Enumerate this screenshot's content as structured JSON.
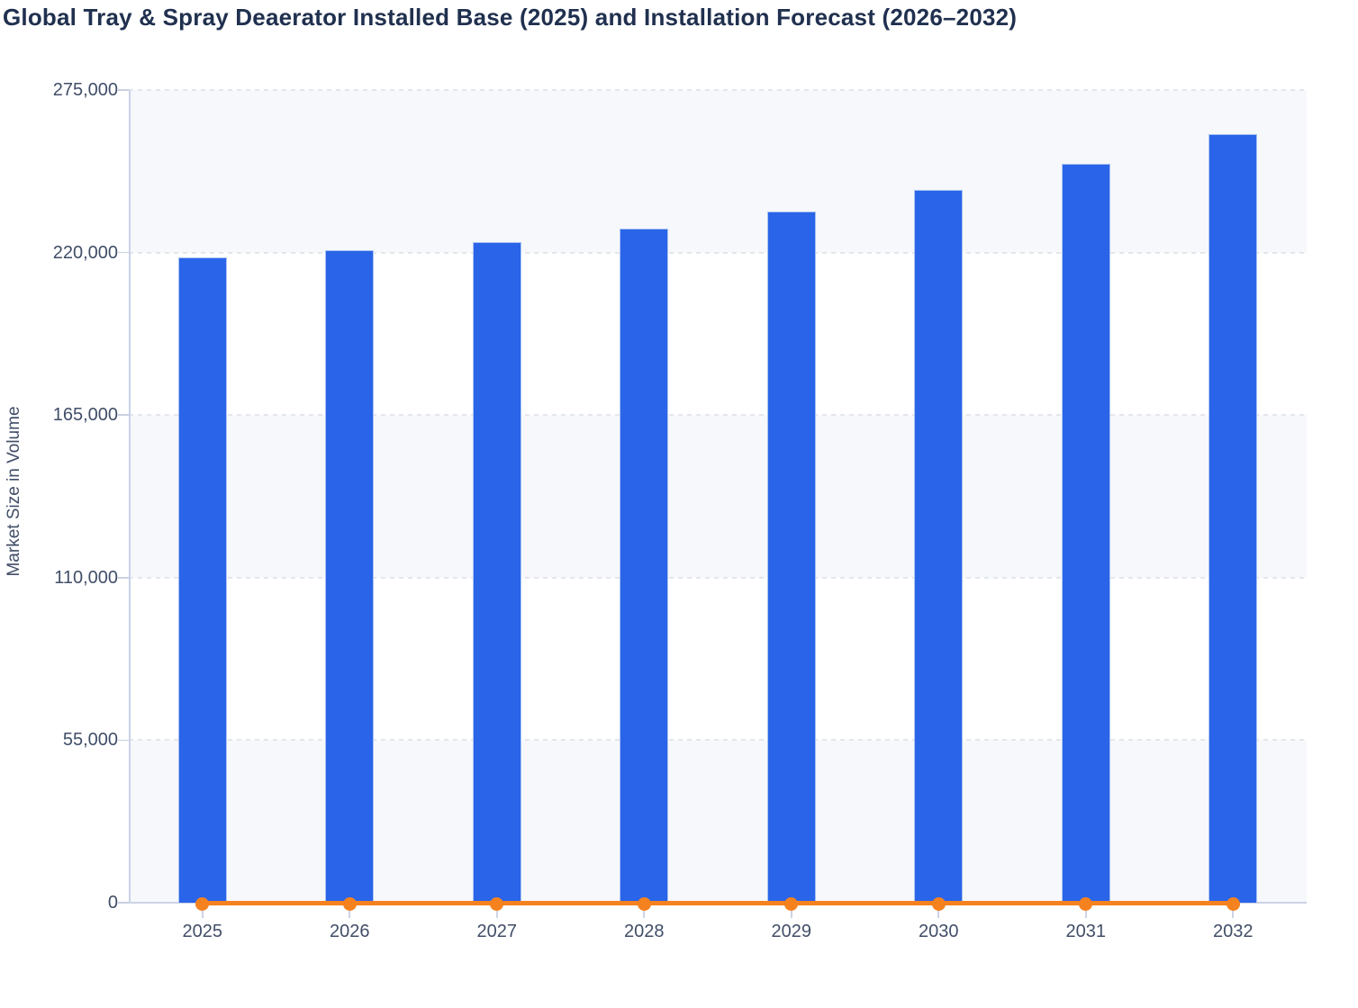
{
  "title": "Global Tray & Spray Deaerator Installed Base (2025) and Installation Forecast (2026–2032)",
  "chart_data": {
    "type": "bar",
    "title": "Global Tray & Spray Deaerator Installed Base (2025) and Installation Forecast (2026–2032)",
    "categories": [
      "2025",
      "2026",
      "2027",
      "2028",
      "2029",
      "2030",
      "2031",
      "2032"
    ],
    "series": [
      {
        "name": "bars",
        "type": "bar",
        "color": "#2a64e8",
        "values": [
          218400,
          220900,
          223600,
          228200,
          233800,
          241100,
          249900,
          260100
        ]
      },
      {
        "name": "line",
        "type": "line",
        "color": "#f5821f",
        "values": [
          0,
          0,
          0,
          0,
          0,
          0,
          0,
          0
        ]
      }
    ],
    "xlabel": "",
    "ylabel": "Market Size in Volume",
    "ylim": [
      0,
      275000
    ],
    "yticks": [
      0,
      55000,
      110000,
      165000,
      220000,
      275000
    ],
    "ytick_labels": [
      "0",
      "55,000",
      "110,000",
      "165,000",
      "220,000",
      "275,000"
    ],
    "grid": "horizontal-dashed",
    "legend": "none",
    "plot_background": "alternating horizontal bands, light band at top",
    "band_color": "#f6f8fb"
  },
  "colors": {
    "bar": "#2a64e8",
    "line": "#f5821f",
    "title_text": "#20304f",
    "axis_text": "#414e68"
  }
}
